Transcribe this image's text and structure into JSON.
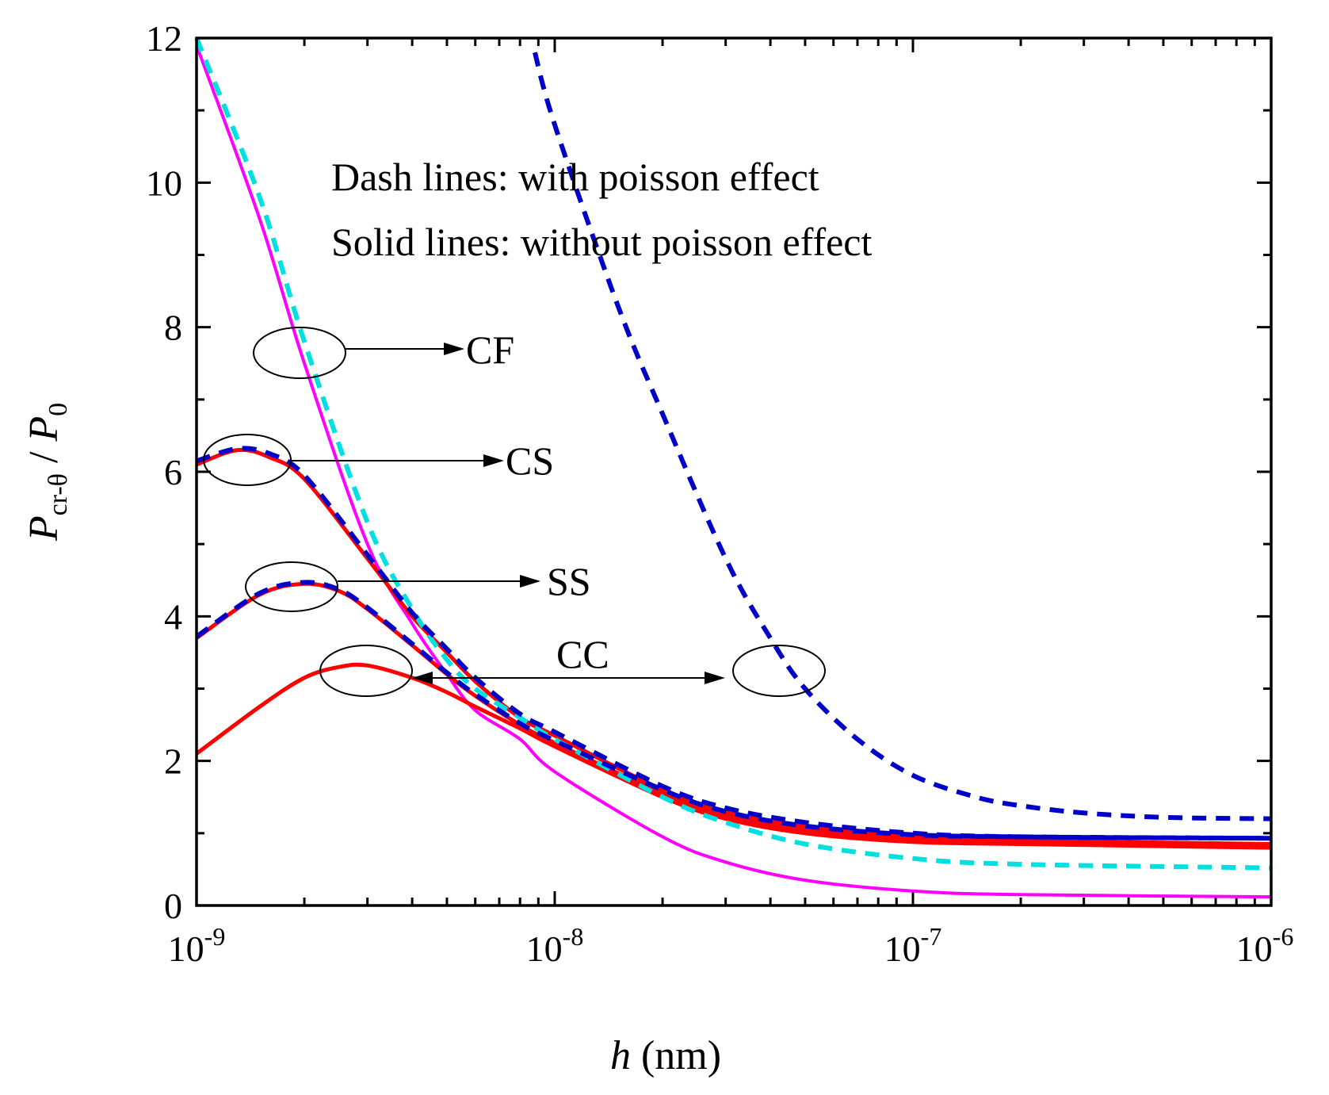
{
  "chart_data": {
    "type": "line",
    "title": "",
    "xscale": "log",
    "xlim": [
      1e-09,
      1e-06
    ],
    "ylim": [
      0,
      12
    ],
    "x_ticks": [
      {
        "value": 1e-09,
        "base": "10",
        "exp": "-9"
      },
      {
        "value": 1e-08,
        "base": "10",
        "exp": "-8"
      },
      {
        "value": 1e-07,
        "base": "10",
        "exp": "-7"
      },
      {
        "value": 1e-06,
        "base": "10",
        "exp": "-6"
      }
    ],
    "y_ticks": [
      "0",
      "2",
      "4",
      "6",
      "8",
      "10",
      "12"
    ],
    "xlabel": {
      "var": "h",
      "unit": " (nm)"
    },
    "ylabel": {
      "var": "P",
      "sub": "cr-θ",
      "sep": " / ",
      "var2": "P",
      "sub2": "0"
    },
    "annotations": {
      "note_dash": "Dash lines: with poisson effect",
      "note_solid": "Solid lines: without poisson effect",
      "CF": "CF",
      "CS": "CS",
      "SS": "SS",
      "CC": "CC"
    },
    "series": [
      {
        "name": "CF solid (without poisson effect)",
        "style": "solid",
        "color": "#ff00ff",
        "x": [
          1e-09,
          1.5e-09,
          2e-09,
          3e-09,
          4e-09,
          5e-09,
          6e-09,
          8e-09,
          1e-08,
          2e-08,
          3e-08,
          5e-08,
          1e-07,
          2e-07,
          1e-06
        ],
        "y": [
          11.9,
          9.5,
          7.5,
          5.0,
          3.9,
          3.2,
          2.7,
          2.3,
          1.85,
          0.95,
          0.6,
          0.35,
          0.2,
          0.15,
          0.12
        ]
      },
      {
        "name": "CF dash (with poisson effect)",
        "style": "dash",
        "color": "#00e0e0",
        "x": [
          1e-09,
          1.5e-09,
          2e-09,
          3e-09,
          4e-09,
          5e-09,
          6e-09,
          8e-09,
          1e-08,
          2e-08,
          3e-08,
          5e-08,
          1e-07,
          2e-07,
          1e-06
        ],
        "y": [
          12.0,
          9.8,
          7.8,
          5.3,
          4.1,
          3.4,
          3.0,
          2.6,
          2.3,
          1.5,
          1.15,
          0.85,
          0.65,
          0.57,
          0.52
        ]
      },
      {
        "name": "CS solid (without poisson effect)",
        "style": "solid",
        "color": "#ff0000",
        "x": [
          1e-09,
          1.3e-09,
          1.6e-09,
          2e-09,
          3e-09,
          4e-09,
          5e-09,
          6e-09,
          8e-09,
          1e-08,
          2e-08,
          3e-08,
          5e-08,
          1e-07,
          2e-07,
          1e-06
        ],
        "y": [
          6.1,
          6.3,
          6.2,
          5.9,
          4.8,
          4.0,
          3.5,
          3.1,
          2.6,
          2.35,
          1.6,
          1.3,
          1.1,
          0.95,
          0.9,
          0.85
        ]
      },
      {
        "name": "CS dash (with poisson effect)",
        "style": "dash",
        "color": "#0000c8",
        "x": [
          1e-09,
          1.3e-09,
          1.6e-09,
          2e-09,
          3e-09,
          4e-09,
          5e-09,
          6e-09,
          8e-09,
          1e-08,
          2e-08,
          3e-08,
          5e-08,
          1e-07,
          2e-07,
          1e-06
        ],
        "y": [
          6.15,
          6.32,
          6.25,
          5.95,
          4.85,
          4.05,
          3.55,
          3.15,
          2.65,
          2.4,
          1.65,
          1.35,
          1.15,
          1.0,
          0.95,
          0.93
        ]
      },
      {
        "name": "SS solid (without poisson effect)",
        "style": "solid",
        "color": "#ff0000",
        "x": [
          1e-09,
          1.5e-09,
          2e-09,
          2.5e-09,
          3e-09,
          4e-09,
          5e-09,
          6e-09,
          8e-09,
          1e-08,
          2e-08,
          3e-08,
          5e-08,
          1e-07,
          2e-07,
          1e-06
        ],
        "y": [
          3.7,
          4.3,
          4.45,
          4.35,
          4.1,
          3.6,
          3.2,
          2.9,
          2.5,
          2.25,
          1.55,
          1.25,
          1.05,
          0.92,
          0.88,
          0.82
        ]
      },
      {
        "name": "SS dash (with poisson effect)",
        "style": "dash",
        "color": "#0000c8",
        "x": [
          1e-09,
          1.5e-09,
          2e-09,
          2.5e-09,
          3e-09,
          4e-09,
          5e-09,
          6e-09,
          8e-09,
          1e-08,
          2e-08,
          3e-08,
          5e-08,
          1e-07,
          2e-07,
          1e-06
        ],
        "y": [
          3.72,
          4.32,
          4.47,
          4.37,
          4.12,
          3.62,
          3.22,
          2.92,
          2.52,
          2.28,
          1.6,
          1.3,
          1.1,
          0.98,
          0.95,
          0.93
        ]
      },
      {
        "name": "CC solid (without poisson effect)",
        "style": "solid",
        "color": "#ff0000",
        "x": [
          1e-09,
          1.5e-09,
          2e-09,
          2.5e-09,
          3e-09,
          4e-09,
          5e-09,
          6e-09,
          8e-09,
          1e-08,
          2e-08,
          3e-08,
          5e-08,
          1e-07,
          2e-07,
          1e-06
        ],
        "y": [
          2.1,
          2.75,
          3.15,
          3.3,
          3.32,
          3.15,
          2.95,
          2.75,
          2.45,
          2.2,
          1.5,
          1.2,
          1.0,
          0.88,
          0.85,
          0.8
        ]
      },
      {
        "name": "CC dash (with poisson effect)",
        "style": "dash",
        "color": "#0000c8",
        "x": [
          8.8e-09,
          1e-08,
          1.5e-08,
          2e-08,
          3e-08,
          4e-08,
          5e-08,
          7e-08,
          1e-07,
          1.5e-07,
          2e-07,
          3e-07,
          5e-07,
          1e-06
        ],
        "y": [
          11.8,
          10.8,
          8.3,
          6.8,
          4.8,
          3.7,
          3.0,
          2.3,
          1.8,
          1.5,
          1.38,
          1.28,
          1.22,
          1.2
        ]
      }
    ]
  }
}
